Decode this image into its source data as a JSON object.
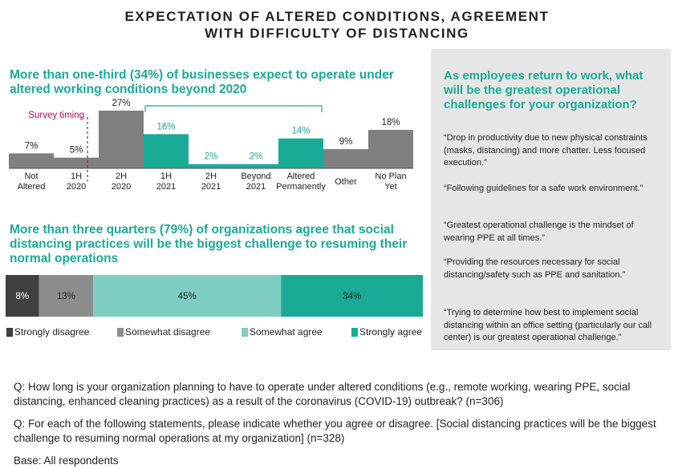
{
  "title": {
    "line1": "EXPECTATION OF ALTERED CONDITIONS, AGREEMENT",
    "line2": "WITH DIFFICULTY OF DISTANCING"
  },
  "chart_data": [
    {
      "type": "bar",
      "title": "More than one-third (34%) of businesses expect to operate under altered working conditions beyond 2020",
      "categories": [
        [
          "Not",
          "Altered"
        ],
        [
          "1H",
          "2020"
        ],
        [
          "2H",
          "2020"
        ],
        [
          "1H",
          "2021"
        ],
        [
          "2H",
          "2021"
        ],
        [
          "Beyond",
          "2021"
        ],
        [
          "Altered",
          "Permanently"
        ],
        [
          "Other"
        ],
        [
          "No Plan",
          "Yet"
        ]
      ],
      "values": [
        7,
        5,
        27,
        16,
        2,
        2,
        14,
        9,
        18
      ],
      "value_labels": [
        "7%",
        "5%",
        "27%",
        "16%",
        "2%",
        "2%",
        "14%",
        "9%",
        "18%"
      ],
      "highlighted": [
        false,
        false,
        false,
        true,
        true,
        true,
        true,
        false,
        false
      ],
      "annotation": "Survey timing",
      "ylim": [
        0,
        30
      ],
      "colors": {
        "default": "#7f7f7f",
        "highlight": "#1aab96",
        "annotation": "#c4005a"
      }
    },
    {
      "type": "bar",
      "orientation": "horizontal-stacked",
      "title": "More than three quarters (79%) of organizations agree that social distancing practices will be the biggest challenge to resuming their normal operations",
      "series": [
        {
          "name": "Strongly disagree",
          "value": 8,
          "label": "8%",
          "color": "#404040"
        },
        {
          "name": "Somewhat disagree",
          "value": 13,
          "label": "13%",
          "color": "#8c8c8c"
        },
        {
          "name": "Somewhat agree",
          "value": 45,
          "label": "45%",
          "color": "#7ecdc3"
        },
        {
          "name": "Strongly agree",
          "value": 34,
          "label": "34%",
          "color": "#1aab96"
        }
      ]
    }
  ],
  "sidebar": {
    "question": "As employees return to work, what will be the greatest operational challenges for your organization?",
    "quotes": [
      "“Drop in productivity due to new physical constraints (masks, distancing) and more chatter. Less focused execution.”",
      "“Following guidelines for a safe work environment.”",
      "“Greatest operational challenge is the mindset of wearing PPE at all times.”",
      "“Providing the resources necessary for social distancing/safety such as PPE and sanitation.”",
      "“Trying to determine how best to implement social distancing within an office setting (particularly our call center) is our greatest operational challenge.”"
    ]
  },
  "footnotes": {
    "q1": "Q: How long is your organization planning to have to operate under altered conditions (e.g., remote working, wearing PPE, social distancing, enhanced cleaning practices) as a result of the coronavirus (COVID-19) outbreak? (n=306)",
    "q2": "Q: For each of the following statements, please indicate whether you agree or disagree. [Social distancing practices will be the biggest challenge to resuming normal operations at my organization] (n=328)",
    "base": "Base: All respondents"
  }
}
